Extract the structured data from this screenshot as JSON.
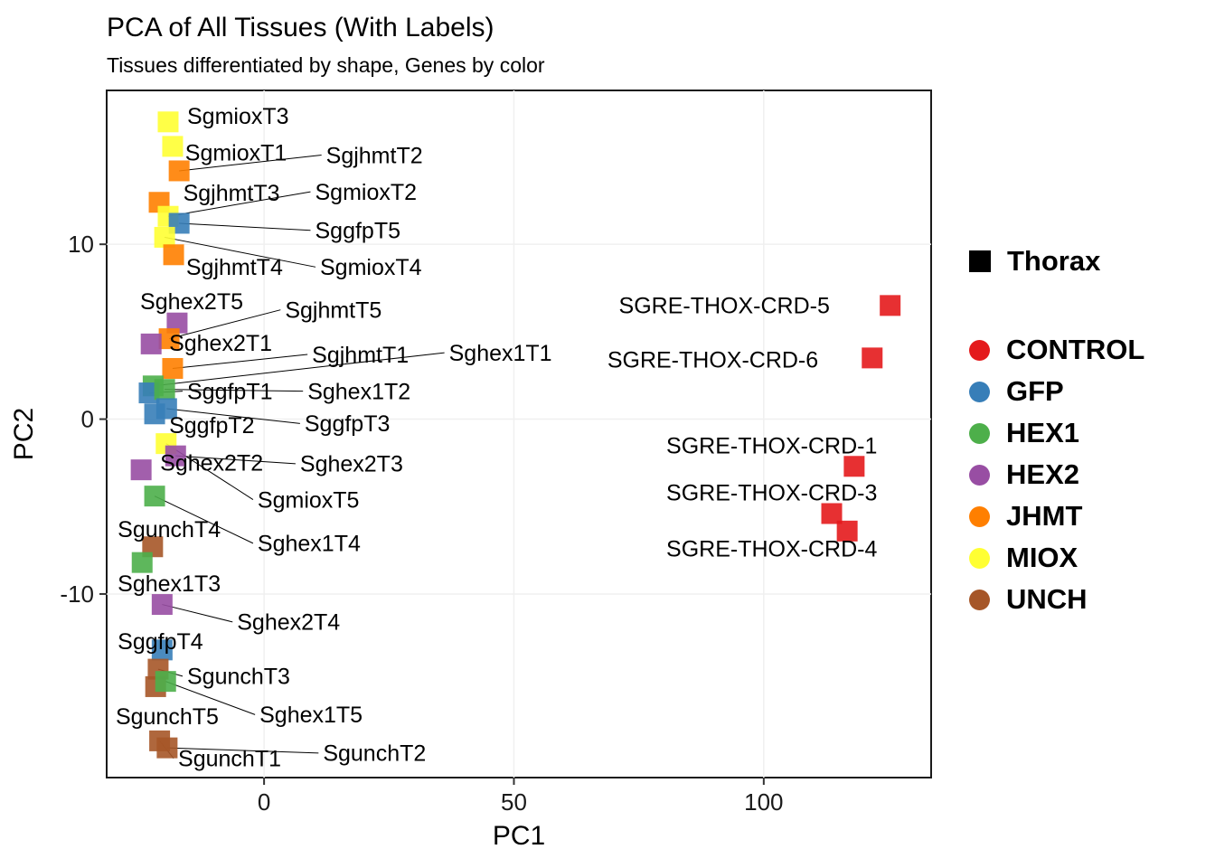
{
  "title": "PCA of All Tissues (With Labels)",
  "subtitle": "Tissues differentiated by shape, Genes by color",
  "chart_data": {
    "type": "scatter",
    "title": "PCA of All Tissues (With Labels)",
    "subtitle": "Tissues differentiated by shape, Genes by color",
    "xlabel": "PC1",
    "ylabel": "PC2",
    "xlim": [
      -31.5,
      133.5
    ],
    "ylim": [
      -20.5,
      18.8
    ],
    "x_ticks": [
      0,
      50,
      100
    ],
    "y_ticks": [
      -10,
      0,
      10
    ],
    "grid": true,
    "point_shape": "square",
    "legend_position": "right",
    "points": [
      {
        "sample": "SgmioxT3",
        "gene": "MIOX",
        "x": -19.2,
        "y": 17.0,
        "lx": -15.4,
        "ly": 17.35,
        "leader": false
      },
      {
        "sample": "SgmioxT1",
        "gene": "MIOX",
        "x": -18.3,
        "y": 15.6,
        "lx": -15.8,
        "ly": 15.25,
        "leader": false
      },
      {
        "sample": "SgjhmtT2",
        "gene": "JHMT",
        "x": -17.0,
        "y": 14.2,
        "lx": 12.4,
        "ly": 15.1,
        "leader": true
      },
      {
        "sample": "SgjhmtT3",
        "gene": "JHMT",
        "x": -21.0,
        "y": 12.4,
        "lx": -16.2,
        "ly": 12.95,
        "leader": false
      },
      {
        "sample": "SgmioxT2",
        "gene": "MIOX",
        "x": -19.2,
        "y": 11.6,
        "lx": 10.2,
        "ly": 13.0,
        "leader": true
      },
      {
        "sample": "SggfpT5",
        "gene": "GFP",
        "x": -17.0,
        "y": 11.2,
        "lx": 10.2,
        "ly": 10.8,
        "leader": true
      },
      {
        "sample": "SgmioxT4",
        "gene": "MIOX",
        "x": -19.9,
        "y": 10.4,
        "lx": 11.2,
        "ly": 8.7,
        "leader": true
      },
      {
        "sample": "SgjhmtT4",
        "gene": "JHMT",
        "x": -18.1,
        "y": 9.4,
        "lx": -15.6,
        "ly": 8.7,
        "leader": false
      },
      {
        "sample": "Sghex2T5",
        "gene": "HEX2",
        "x": -17.4,
        "y": 5.5,
        "lx": -24.8,
        "ly": 6.75,
        "leader": false
      },
      {
        "sample": "SgjhmtT5",
        "gene": "JHMT",
        "x": -19.0,
        "y": 4.6,
        "lx": 4.2,
        "ly": 6.25,
        "leader": true
      },
      {
        "sample": "Sghex2T1",
        "gene": "HEX2",
        "x": -22.6,
        "y": 4.3,
        "lx": -19.0,
        "ly": 4.35,
        "leader": false
      },
      {
        "sample": "SgjhmtT1",
        "gene": "JHMT",
        "x": -18.3,
        "y": 2.9,
        "lx": 9.6,
        "ly": 3.7,
        "leader": true
      },
      {
        "sample": "Sghex1T1",
        "gene": "HEX1",
        "x": -22.2,
        "y": 1.9,
        "lx": 37.0,
        "ly": 3.8,
        "leader": true
      },
      {
        "sample": "SggfpT1",
        "gene": "GFP",
        "x": -23.0,
        "y": 1.5,
        "lx": -15.4,
        "ly": 1.6,
        "leader": true
      },
      {
        "sample": "Sghex1T2",
        "gene": "HEX1",
        "x": -19.9,
        "y": 1.7,
        "lx": 8.7,
        "ly": 1.6,
        "leader": true
      },
      {
        "sample": "SggfpT2",
        "gene": "GFP",
        "x": -21.9,
        "y": 0.3,
        "lx": -19.0,
        "ly": -0.35,
        "leader": false
      },
      {
        "sample": "SggfpT3",
        "gene": "GFP",
        "x": -19.5,
        "y": 0.6,
        "lx": 8.1,
        "ly": -0.25,
        "leader": true
      },
      {
        "sample": "SgmioxT5",
        "gene": "MIOX",
        "x": -19.6,
        "y": -1.4,
        "lx": -1.3,
        "ly": -4.6,
        "leader": true
      },
      {
        "sample": "Sghex2T2",
        "gene": "HEX2",
        "x": -24.6,
        "y": -2.9,
        "lx": -20.8,
        "ly": -2.5,
        "leader": false
      },
      {
        "sample": "Sghex2T3",
        "gene": "HEX2",
        "x": -17.7,
        "y": -2.1,
        "lx": 7.2,
        "ly": -2.55,
        "leader": true
      },
      {
        "sample": "Sghex1T4",
        "gene": "HEX1",
        "x": -21.9,
        "y": -4.4,
        "lx": -1.3,
        "ly": -7.1,
        "leader": true
      },
      {
        "sample": "SgunchT4",
        "gene": "UNCH",
        "x": -22.3,
        "y": -7.3,
        "lx": -29.3,
        "ly": -6.3,
        "leader": false
      },
      {
        "sample": "Sghex1T3",
        "gene": "HEX1",
        "x": -24.4,
        "y": -8.2,
        "lx": -29.3,
        "ly": -9.4,
        "leader": false
      },
      {
        "sample": "Sghex2T4",
        "gene": "HEX2",
        "x": -20.4,
        "y": -10.6,
        "lx": -5.4,
        "ly": -11.6,
        "leader": true
      },
      {
        "sample": "SggfpT4",
        "gene": "GFP",
        "x": -20.4,
        "y": -13.2,
        "lx": -29.3,
        "ly": -12.7,
        "leader": false
      },
      {
        "sample": "SgunchT3",
        "gene": "UNCH",
        "x": -21.2,
        "y": -14.3,
        "lx": -15.4,
        "ly": -14.7,
        "leader": true
      },
      {
        "sample": "SgunchT5",
        "gene": "UNCH",
        "x": -21.7,
        "y": -15.3,
        "lx": -29.7,
        "ly": -17.0,
        "leader": false
      },
      {
        "sample": "Sghex1T5",
        "gene": "HEX1",
        "x": -19.7,
        "y": -15.0,
        "lx": -0.9,
        "ly": -16.9,
        "leader": true
      },
      {
        "sample": "SgunchT1",
        "gene": "UNCH",
        "x": -20.9,
        "y": -18.4,
        "lx": -17.2,
        "ly": -19.4,
        "leader": true
      },
      {
        "sample": "SgunchT2",
        "gene": "UNCH",
        "x": -19.4,
        "y": -18.8,
        "lx": 11.8,
        "ly": -19.1,
        "leader": true
      },
      {
        "sample": "SGRE-THOX-CRD-5",
        "gene": "CONTROL",
        "x": 125.3,
        "y": 6.5,
        "lx": 71.0,
        "ly": 6.5,
        "leader": false
      },
      {
        "sample": "SGRE-THOX-CRD-6",
        "gene": "CONTROL",
        "x": 121.7,
        "y": 3.5,
        "lx": 68.7,
        "ly": 3.4,
        "leader": false
      },
      {
        "sample": "SGRE-THOX-CRD-1",
        "gene": "CONTROL",
        "x": 118.1,
        "y": -2.7,
        "lx": 80.5,
        "ly": -1.5,
        "leader": false
      },
      {
        "sample": "SGRE-THOX-CRD-3",
        "gene": "CONTROL",
        "x": 113.6,
        "y": -5.4,
        "lx": 80.5,
        "ly": -4.2,
        "leader": false
      },
      {
        "sample": "SGRE-THOX-CRD-4",
        "gene": "CONTROL",
        "x": 116.7,
        "y": -6.4,
        "lx": 80.5,
        "ly": -7.4,
        "leader": false
      }
    ]
  },
  "legend": {
    "shape_section": [
      {
        "label": "Thorax",
        "swatch": "square",
        "color": "#000000"
      }
    ],
    "color_section": [
      {
        "label": "CONTROL",
        "swatch": "circle",
        "color": "#E41A1C"
      },
      {
        "label": "GFP",
        "swatch": "circle",
        "color": "#377EB8"
      },
      {
        "label": "HEX1",
        "swatch": "circle",
        "color": "#4DAF4A"
      },
      {
        "label": "HEX2",
        "swatch": "circle",
        "color": "#984EA3"
      },
      {
        "label": "JHMT",
        "swatch": "circle",
        "color": "#FF7F00"
      },
      {
        "label": "MIOX",
        "swatch": "circle",
        "color": "#FFFF33"
      },
      {
        "label": "UNCH",
        "swatch": "circle",
        "color": "#A65628"
      }
    ]
  }
}
